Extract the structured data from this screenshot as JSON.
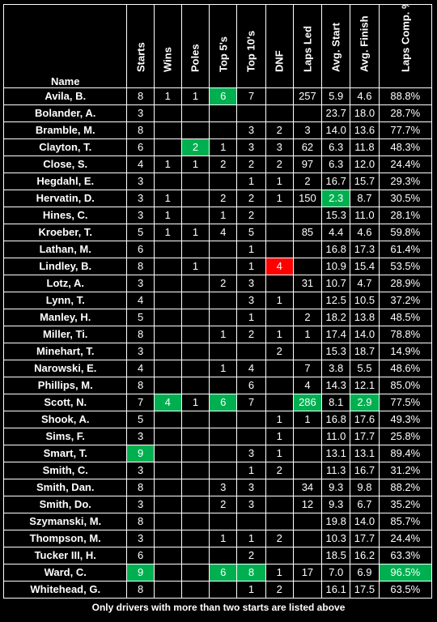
{
  "headers": [
    "Name",
    "Starts",
    "Wins",
    "Poles",
    "Top 5's",
    "Top 10's",
    "DNF",
    "Laps Led",
    "Avg. Start",
    "Avg. Finish",
    "Laps Comp. %"
  ],
  "colors": {
    "highlight_green": "#00b050",
    "highlight_red": "#ff0000",
    "background": "#000000",
    "text": "#ffffff"
  },
  "rows": [
    {
      "cells": [
        "Avila, B.",
        "8",
        "1",
        "1",
        "6",
        "7",
        "",
        "257",
        "5.9",
        "4.6",
        "88.8%"
      ],
      "hl": {
        "4": "green"
      }
    },
    {
      "cells": [
        "Bolander, A.",
        "3",
        "",
        "",
        "",
        "",
        "",
        "",
        "23.7",
        "18.0",
        "28.7%"
      ],
      "hl": {}
    },
    {
      "cells": [
        "Bramble, M.",
        "8",
        "",
        "",
        "",
        "3",
        "2",
        "3",
        "14.0",
        "13.6",
        "77.7%"
      ],
      "hl": {}
    },
    {
      "cells": [
        "Clayton, T.",
        "6",
        "",
        "2",
        "1",
        "3",
        "3",
        "62",
        "6.3",
        "11.8",
        "48.3%"
      ],
      "hl": {
        "3": "green"
      }
    },
    {
      "cells": [
        "Close, S.",
        "4",
        "1",
        "1",
        "2",
        "2",
        "2",
        "97",
        "6.3",
        "12.0",
        "24.4%"
      ],
      "hl": {}
    },
    {
      "cells": [
        "Hegdahl, E.",
        "3",
        "",
        "",
        "",
        "1",
        "1",
        "2",
        "16.7",
        "15.7",
        "29.3%"
      ],
      "hl": {}
    },
    {
      "cells": [
        "Hervatin, D.",
        "3",
        "1",
        "",
        "2",
        "2",
        "1",
        "150",
        "2.3",
        "8.7",
        "30.5%"
      ],
      "hl": {
        "8": "green"
      }
    },
    {
      "cells": [
        "Hines, C.",
        "3",
        "1",
        "",
        "1",
        "2",
        "",
        "",
        "15.3",
        "11.0",
        "28.1%"
      ],
      "hl": {}
    },
    {
      "cells": [
        "Kroeber, T.",
        "5",
        "1",
        "1",
        "4",
        "5",
        "",
        "85",
        "4.4",
        "4.6",
        "59.8%"
      ],
      "hl": {}
    },
    {
      "cells": [
        "Lathan, M.",
        "6",
        "",
        "",
        "",
        "1",
        "",
        "",
        "16.8",
        "17.3",
        "61.4%"
      ],
      "hl": {}
    },
    {
      "cells": [
        "Lindley, B.",
        "8",
        "",
        "1",
        "",
        "1",
        "4",
        "",
        "10.9",
        "15.4",
        "53.5%"
      ],
      "hl": {
        "6": "red"
      }
    },
    {
      "cells": [
        "Lotz, A.",
        "3",
        "",
        "",
        "2",
        "3",
        "",
        "31",
        "10.7",
        "4.7",
        "28.9%"
      ],
      "hl": {}
    },
    {
      "cells": [
        "Lynn, T.",
        "4",
        "",
        "",
        "",
        "3",
        "1",
        "",
        "12.5",
        "10.5",
        "37.2%"
      ],
      "hl": {}
    },
    {
      "cells": [
        "Manley, H.",
        "5",
        "",
        "",
        "",
        "1",
        "",
        "2",
        "18.2",
        "13.8",
        "48.5%"
      ],
      "hl": {}
    },
    {
      "cells": [
        "Miller, Ti.",
        "8",
        "",
        "",
        "1",
        "2",
        "1",
        "1",
        "17.4",
        "14.0",
        "78.8%"
      ],
      "hl": {}
    },
    {
      "cells": [
        "Minehart, T.",
        "3",
        "",
        "",
        "",
        "",
        "2",
        "",
        "15.3",
        "18.7",
        "14.9%"
      ],
      "hl": {}
    },
    {
      "cells": [
        "Narowski, E.",
        "4",
        "",
        "",
        "1",
        "4",
        "",
        "7",
        "3.8",
        "5.5",
        "48.6%"
      ],
      "hl": {}
    },
    {
      "cells": [
        "Phillips, M.",
        "8",
        "",
        "",
        "",
        "6",
        "",
        "4",
        "14.3",
        "12.1",
        "85.0%"
      ],
      "hl": {}
    },
    {
      "cells": [
        "Scott, N.",
        "7",
        "4",
        "1",
        "6",
        "7",
        "",
        "286",
        "8.1",
        "2.9",
        "77.5%"
      ],
      "hl": {
        "2": "green",
        "4": "green",
        "7": "green",
        "9": "green"
      }
    },
    {
      "cells": [
        "Shook, A.",
        "5",
        "",
        "",
        "",
        "",
        "1",
        "1",
        "16.8",
        "17.6",
        "49.3%"
      ],
      "hl": {}
    },
    {
      "cells": [
        "Sims, F.",
        "3",
        "",
        "",
        "",
        "",
        "1",
        "",
        "11.0",
        "17.7",
        "25.8%"
      ],
      "hl": {}
    },
    {
      "cells": [
        "Smart, T.",
        "9",
        "",
        "",
        "",
        "3",
        "1",
        "",
        "13.1",
        "13.1",
        "89.4%"
      ],
      "hl": {
        "1": "green"
      }
    },
    {
      "cells": [
        "Smith, C.",
        "3",
        "",
        "",
        "",
        "1",
        "2",
        "",
        "11.3",
        "16.7",
        "31.2%"
      ],
      "hl": {}
    },
    {
      "cells": [
        "Smith, Dan.",
        "8",
        "",
        "",
        "3",
        "3",
        "",
        "34",
        "9.3",
        "9.8",
        "88.2%"
      ],
      "hl": {}
    },
    {
      "cells": [
        "Smith, Do.",
        "3",
        "",
        "",
        "2",
        "3",
        "",
        "12",
        "9.3",
        "6.7",
        "35.2%"
      ],
      "hl": {}
    },
    {
      "cells": [
        "Szymanski, M.",
        "8",
        "",
        "",
        "",
        "",
        "",
        "",
        "19.8",
        "14.0",
        "85.7%"
      ],
      "hl": {}
    },
    {
      "cells": [
        "Thompson, M.",
        "3",
        "",
        "",
        "1",
        "1",
        "2",
        "",
        "10.3",
        "17.7",
        "24.4%"
      ],
      "hl": {}
    },
    {
      "cells": [
        "Tucker III, H.",
        "6",
        "",
        "",
        "",
        "2",
        "",
        "",
        "18.5",
        "16.2",
        "63.3%"
      ],
      "hl": {}
    },
    {
      "cells": [
        "Ward, C.",
        "9",
        "",
        "",
        "6",
        "8",
        "1",
        "17",
        "7.0",
        "6.9",
        "96.5%"
      ],
      "hl": {
        "1": "green",
        "4": "green",
        "5": "green",
        "10": "green"
      }
    },
    {
      "cells": [
        "Whitehead, G.",
        "8",
        "",
        "",
        "",
        "1",
        "2",
        "",
        "16.1",
        "17.5",
        "63.5%"
      ],
      "hl": {}
    }
  ],
  "footnote": "Only drivers with more than two starts are listed above"
}
